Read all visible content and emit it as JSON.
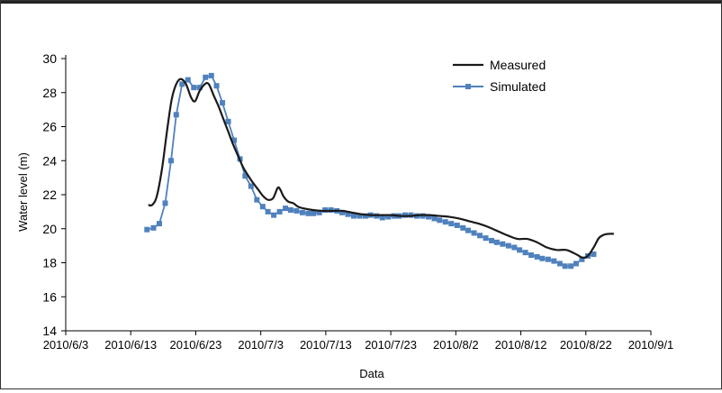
{
  "chart_data": {
    "type": "line",
    "title": "",
    "xlabel": "Data",
    "ylabel": "Water level (m)",
    "ylim": [
      14,
      30
    ],
    "yticks": [
      14,
      16,
      18,
      20,
      22,
      24,
      26,
      28,
      30
    ],
    "xlim_day": [
      0,
      90
    ],
    "xticks": [
      {
        "day": 0,
        "label": "2010/6/3"
      },
      {
        "day": 10,
        "label": "2010/6/13"
      },
      {
        "day": 20,
        "label": "2010/6/23"
      },
      {
        "day": 30,
        "label": "2010/7/3"
      },
      {
        "day": 40,
        "label": "2010/7/13"
      },
      {
        "day": 50,
        "label": "2010/7/23"
      },
      {
        "day": 60,
        "label": "2010/8/2"
      },
      {
        "day": 70,
        "label": "2010/8/12"
      },
      {
        "day": 80,
        "label": "2010/8/22"
      },
      {
        "day": 90,
        "label": "2010/9/1"
      }
    ],
    "legend_position": "top-right",
    "series": [
      {
        "name": "Measured",
        "color": "#1a1a1a",
        "marker": "none",
        "points": [
          [
            12.7,
            21.4
          ],
          [
            13.3,
            21.4
          ],
          [
            14.0,
            21.9
          ],
          [
            14.8,
            23.5
          ],
          [
            15.6,
            25.8
          ],
          [
            16.3,
            27.6
          ],
          [
            17.0,
            28.5
          ],
          [
            17.7,
            28.8
          ],
          [
            18.5,
            28.5
          ],
          [
            19.3,
            27.7
          ],
          [
            19.9,
            27.5
          ],
          [
            20.6,
            28.1
          ],
          [
            21.4,
            28.5
          ],
          [
            22.0,
            28.5
          ],
          [
            22.8,
            27.8
          ],
          [
            23.5,
            27.2
          ],
          [
            24.2,
            26.5
          ],
          [
            25.0,
            25.7
          ],
          [
            25.8,
            24.9
          ],
          [
            26.6,
            24.2
          ],
          [
            27.3,
            23.6
          ],
          [
            28.1,
            23.1
          ],
          [
            28.8,
            22.7
          ],
          [
            29.6,
            22.3
          ],
          [
            30.4,
            21.9
          ],
          [
            31.1,
            21.7
          ],
          [
            31.9,
            21.8
          ],
          [
            32.6,
            22.4
          ],
          [
            33.0,
            22.3
          ],
          [
            33.5,
            21.9
          ],
          [
            34.2,
            21.6
          ],
          [
            35.0,
            21.5
          ],
          [
            35.7,
            21.3
          ],
          [
            36.5,
            21.2
          ],
          [
            38.0,
            21.1
          ],
          [
            39.5,
            21.05
          ],
          [
            41.0,
            21.05
          ],
          [
            42.5,
            21.05
          ],
          [
            44.0,
            20.95
          ],
          [
            45.5,
            20.85
          ],
          [
            47.0,
            20.8
          ],
          [
            48.5,
            20.8
          ],
          [
            50.0,
            20.8
          ],
          [
            51.5,
            20.75
          ],
          [
            53.0,
            20.75
          ],
          [
            54.5,
            20.8
          ],
          [
            56.0,
            20.8
          ],
          [
            57.5,
            20.75
          ],
          [
            59.0,
            20.7
          ],
          [
            60.5,
            20.6
          ],
          [
            62.0,
            20.45
          ],
          [
            63.5,
            20.3
          ],
          [
            65.0,
            20.1
          ],
          [
            66.5,
            19.85
          ],
          [
            68.0,
            19.6
          ],
          [
            69.5,
            19.4
          ],
          [
            71.0,
            19.4
          ],
          [
            72.5,
            19.2
          ],
          [
            74.0,
            18.9
          ],
          [
            75.5,
            18.75
          ],
          [
            77.0,
            18.75
          ],
          [
            78.5,
            18.5
          ],
          [
            79.5,
            18.3
          ],
          [
            80.3,
            18.4
          ],
          [
            81.2,
            18.9
          ],
          [
            82.0,
            19.45
          ],
          [
            82.8,
            19.65
          ],
          [
            83.6,
            19.7
          ],
          [
            84.3,
            19.7
          ]
        ]
      },
      {
        "name": "Simulated",
        "color": "#4f81bd",
        "marker": "square",
        "points": [
          [
            12.5,
            19.95
          ],
          [
            13.5,
            20.05
          ],
          [
            14.4,
            20.3
          ],
          [
            15.3,
            21.5
          ],
          [
            16.2,
            24.0
          ],
          [
            17.0,
            26.7
          ],
          [
            17.9,
            28.5
          ],
          [
            18.8,
            28.75
          ],
          [
            19.7,
            28.3
          ],
          [
            20.6,
            28.3
          ],
          [
            21.5,
            28.9
          ],
          [
            22.4,
            29.0
          ],
          [
            23.2,
            28.4
          ],
          [
            24.1,
            27.4
          ],
          [
            25.0,
            26.3
          ],
          [
            25.9,
            25.2
          ],
          [
            26.8,
            24.1
          ],
          [
            27.6,
            23.1
          ],
          [
            28.5,
            22.5
          ],
          [
            29.4,
            21.7
          ],
          [
            30.3,
            21.3
          ],
          [
            31.1,
            21.0
          ],
          [
            32.0,
            20.8
          ],
          [
            32.9,
            21.0
          ],
          [
            33.8,
            21.2
          ],
          [
            34.6,
            21.1
          ],
          [
            35.5,
            21.05
          ],
          [
            36.4,
            20.95
          ],
          [
            37.3,
            20.9
          ],
          [
            38.1,
            20.9
          ],
          [
            39.0,
            20.95
          ],
          [
            39.9,
            21.1
          ],
          [
            40.8,
            21.1
          ],
          [
            41.7,
            21.05
          ],
          [
            42.5,
            20.95
          ],
          [
            43.4,
            20.85
          ],
          [
            44.3,
            20.75
          ],
          [
            45.2,
            20.75
          ],
          [
            46.1,
            20.75
          ],
          [
            46.9,
            20.8
          ],
          [
            47.8,
            20.75
          ],
          [
            48.7,
            20.65
          ],
          [
            49.6,
            20.7
          ],
          [
            50.5,
            20.75
          ],
          [
            51.3,
            20.75
          ],
          [
            52.2,
            20.8
          ],
          [
            53.1,
            20.8
          ],
          [
            54.0,
            20.75
          ],
          [
            54.9,
            20.75
          ],
          [
            55.8,
            20.7
          ],
          [
            56.7,
            20.6
          ],
          [
            57.5,
            20.5
          ],
          [
            58.4,
            20.4
          ],
          [
            59.3,
            20.3
          ],
          [
            60.2,
            20.2
          ],
          [
            61.1,
            20.05
          ],
          [
            61.9,
            19.9
          ],
          [
            62.8,
            19.75
          ],
          [
            63.7,
            19.6
          ],
          [
            64.6,
            19.45
          ],
          [
            65.5,
            19.3
          ],
          [
            66.3,
            19.2
          ],
          [
            67.2,
            19.1
          ],
          [
            68.1,
            19.0
          ],
          [
            69.0,
            18.9
          ],
          [
            69.8,
            18.75
          ],
          [
            70.7,
            18.6
          ],
          [
            71.6,
            18.45
          ],
          [
            72.5,
            18.35
          ],
          [
            73.3,
            18.25
          ],
          [
            74.2,
            18.2
          ],
          [
            75.1,
            18.1
          ],
          [
            76.0,
            17.95
          ],
          [
            76.8,
            17.8
          ],
          [
            77.7,
            17.8
          ],
          [
            78.5,
            17.95
          ],
          [
            79.4,
            18.2
          ],
          [
            80.3,
            18.4
          ],
          [
            81.2,
            18.5
          ]
        ]
      }
    ]
  }
}
